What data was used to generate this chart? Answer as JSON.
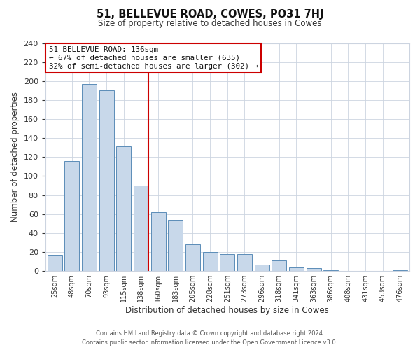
{
  "title": "51, BELLEVUE ROAD, COWES, PO31 7HJ",
  "subtitle": "Size of property relative to detached houses in Cowes",
  "xlabel": "Distribution of detached houses by size in Cowes",
  "ylabel": "Number of detached properties",
  "bar_labels": [
    "25sqm",
    "48sqm",
    "70sqm",
    "93sqm",
    "115sqm",
    "138sqm",
    "160sqm",
    "183sqm",
    "205sqm",
    "228sqm",
    "251sqm",
    "273sqm",
    "296sqm",
    "318sqm",
    "341sqm",
    "363sqm",
    "386sqm",
    "408sqm",
    "431sqm",
    "453sqm",
    "476sqm"
  ],
  "bar_values": [
    16,
    116,
    197,
    190,
    131,
    90,
    62,
    54,
    28,
    20,
    18,
    18,
    7,
    11,
    4,
    3,
    1,
    0,
    0,
    0,
    1
  ],
  "bar_color": "#c8d8ea",
  "bar_edge_color": "#5b8db8",
  "marker_index": 5,
  "marker_line_color": "#cc0000",
  "annotation_title": "51 BELLEVUE ROAD: 136sqm",
  "annotation_line1": "← 67% of detached houses are smaller (635)",
  "annotation_line2": "32% of semi-detached houses are larger (302) →",
  "annotation_box_color": "#ffffff",
  "annotation_box_edge": "#cc0000",
  "ylim": [
    0,
    240
  ],
  "yticks": [
    0,
    20,
    40,
    60,
    80,
    100,
    120,
    140,
    160,
    180,
    200,
    220,
    240
  ],
  "footer_line1": "Contains HM Land Registry data © Crown copyright and database right 2024.",
  "footer_line2": "Contains public sector information licensed under the Open Government Licence v3.0.",
  "bg_color": "#ffffff",
  "grid_color": "#ccd4e0"
}
